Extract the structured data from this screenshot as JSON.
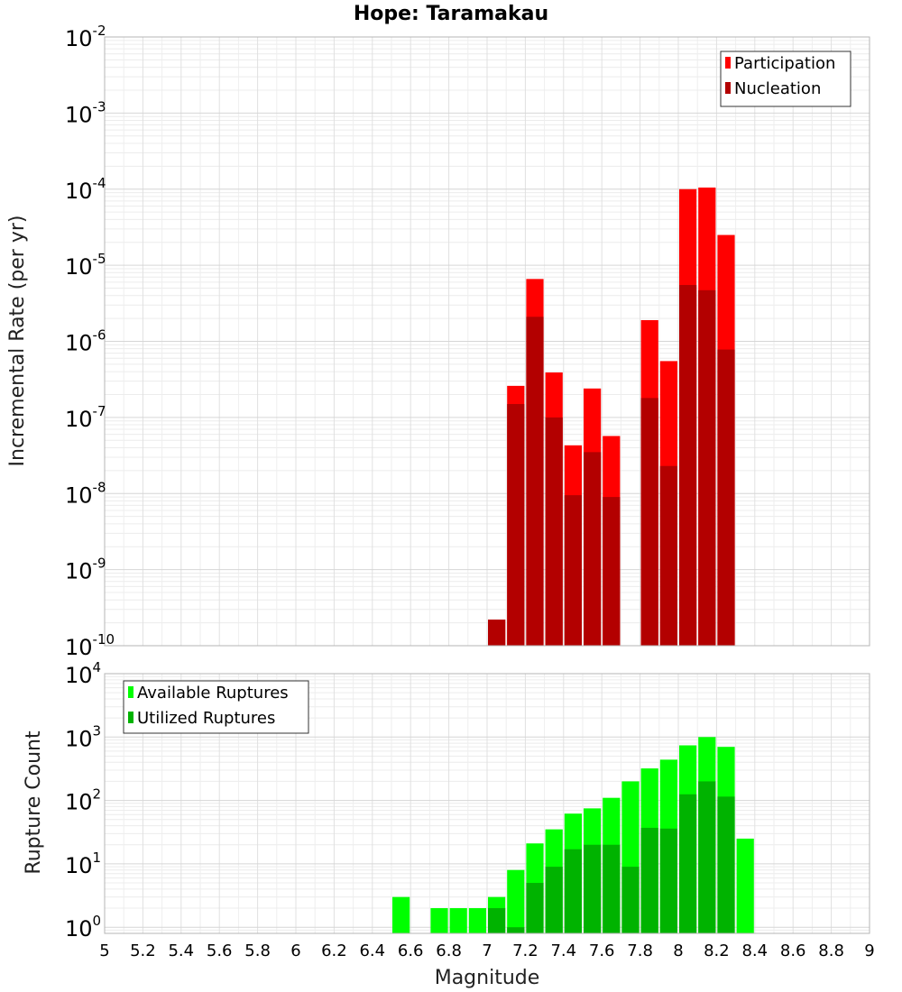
{
  "chart_data": [
    {
      "type": "bar",
      "title": "Hope: Taramakau",
      "xlabel": "",
      "ylabel": "Incremental Rate (per yr)",
      "y_scale": "log",
      "ylim": [
        1e-10,
        0.01
      ],
      "y_tick_base": "10",
      "y_tick_exponents": [
        "-10",
        "-9",
        "-8",
        "-7",
        "-6",
        "-5",
        "-4",
        "-3",
        "-2"
      ],
      "xlim": [
        5,
        9
      ],
      "grid": true,
      "legend_position": "top-right",
      "x": [
        7.05,
        7.15,
        7.25,
        7.35,
        7.45,
        7.55,
        7.65,
        7.85,
        7.95,
        8.05,
        8.15,
        8.25
      ],
      "series": [
        {
          "name": "Participation",
          "color": "#ff0000",
          "values": [
            2.2e-10,
            2.6e-07,
            6.6e-06,
            3.9e-07,
            4.3e-08,
            2.4e-07,
            5.7e-08,
            1.9e-06,
            5.5e-07,
            0.0001,
            0.000105,
            2.5e-05
          ]
        },
        {
          "name": "Nucleation",
          "color": "#b30000",
          "values": [
            2.2e-10,
            1.5e-07,
            2.1e-06,
            1e-07,
            9.5e-09,
            3.5e-08,
            9e-09,
            1.8e-07,
            2.3e-08,
            5.5e-06,
            4.7e-06,
            7.8e-07
          ]
        }
      ]
    },
    {
      "type": "bar",
      "title": "",
      "xlabel": "Magnitude",
      "ylabel": "Rupture Count",
      "y_scale": "log",
      "ylim": [
        0.8,
        10000
      ],
      "y_tick_base": "10",
      "y_tick_exponents": [
        "0",
        "1",
        "2",
        "3",
        "4"
      ],
      "xlim": [
        5,
        9
      ],
      "x_ticks": [
        "5",
        "5.2",
        "5.4",
        "5.6",
        "5.8",
        "6",
        "6.2",
        "6.4",
        "6.6",
        "6.8",
        "7",
        "7.2",
        "7.4",
        "7.6",
        "7.8",
        "8",
        "8.2",
        "8.4",
        "8.6",
        "8.8",
        "9"
      ],
      "grid": true,
      "legend_position": "top-left",
      "x": [
        6.55,
        6.75,
        6.85,
        6.95,
        7.05,
        7.15,
        7.25,
        7.35,
        7.45,
        7.55,
        7.65,
        7.75,
        7.85,
        7.95,
        8.05,
        8.15,
        8.25,
        8.35
      ],
      "series": [
        {
          "name": "Available Ruptures",
          "color": "#00ff00",
          "values": [
            3,
            2,
            2,
            2,
            3,
            8,
            21,
            35,
            62,
            75,
            110,
            200,
            320,
            440,
            740,
            1000,
            700,
            25
          ]
        },
        {
          "name": "Utilized Ruptures",
          "color": "#00b300",
          "values": [
            0,
            0,
            0,
            0,
            2,
            1,
            5,
            9,
            17,
            20,
            20,
            9,
            37,
            36,
            125,
            200,
            115,
            0
          ]
        }
      ]
    }
  ]
}
